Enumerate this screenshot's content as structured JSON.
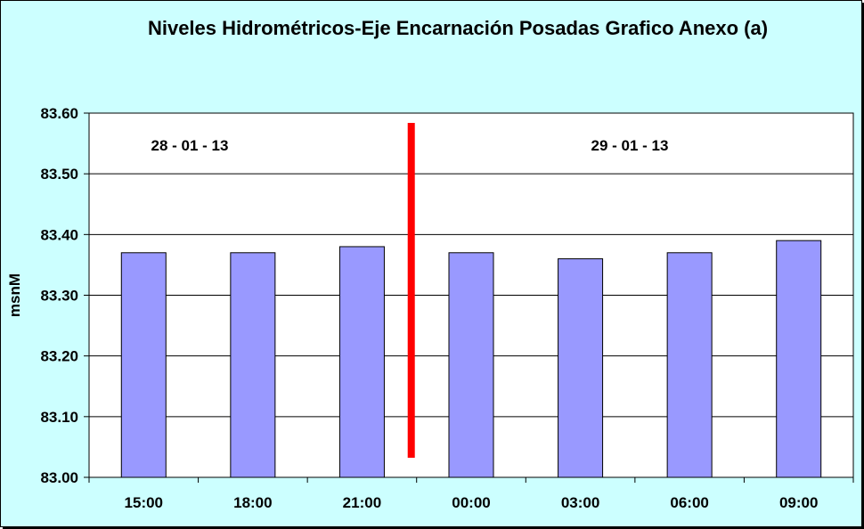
{
  "chart_data": {
    "type": "bar",
    "title": "Niveles Hidrométricos-Eje Encarnación Posadas Grafico Anexo (a)",
    "xlabel": "",
    "ylabel": "msnM",
    "categories": [
      "15:00",
      "18:00",
      "21:00",
      "00:00",
      "03:00",
      "06:00",
      "09:00"
    ],
    "series": [
      {
        "values": [
          83.37,
          83.37,
          83.38,
          83.37,
          83.36,
          83.37,
          83.39
        ]
      }
    ],
    "ylim": [
      83.0,
      83.6
    ],
    "yticks": [
      "83.00",
      "83.10",
      "83.20",
      "83.30",
      "83.40",
      "83.50",
      "83.60"
    ],
    "grid": true,
    "annotations": [
      {
        "text": "28 - 01 - 13"
      },
      {
        "text": "29 - 01 - 13"
      }
    ],
    "colors": {
      "background": "#ccffff",
      "plot_area": "#ffffff",
      "bar": "#9999ff",
      "divider": "#ff0000"
    }
  }
}
